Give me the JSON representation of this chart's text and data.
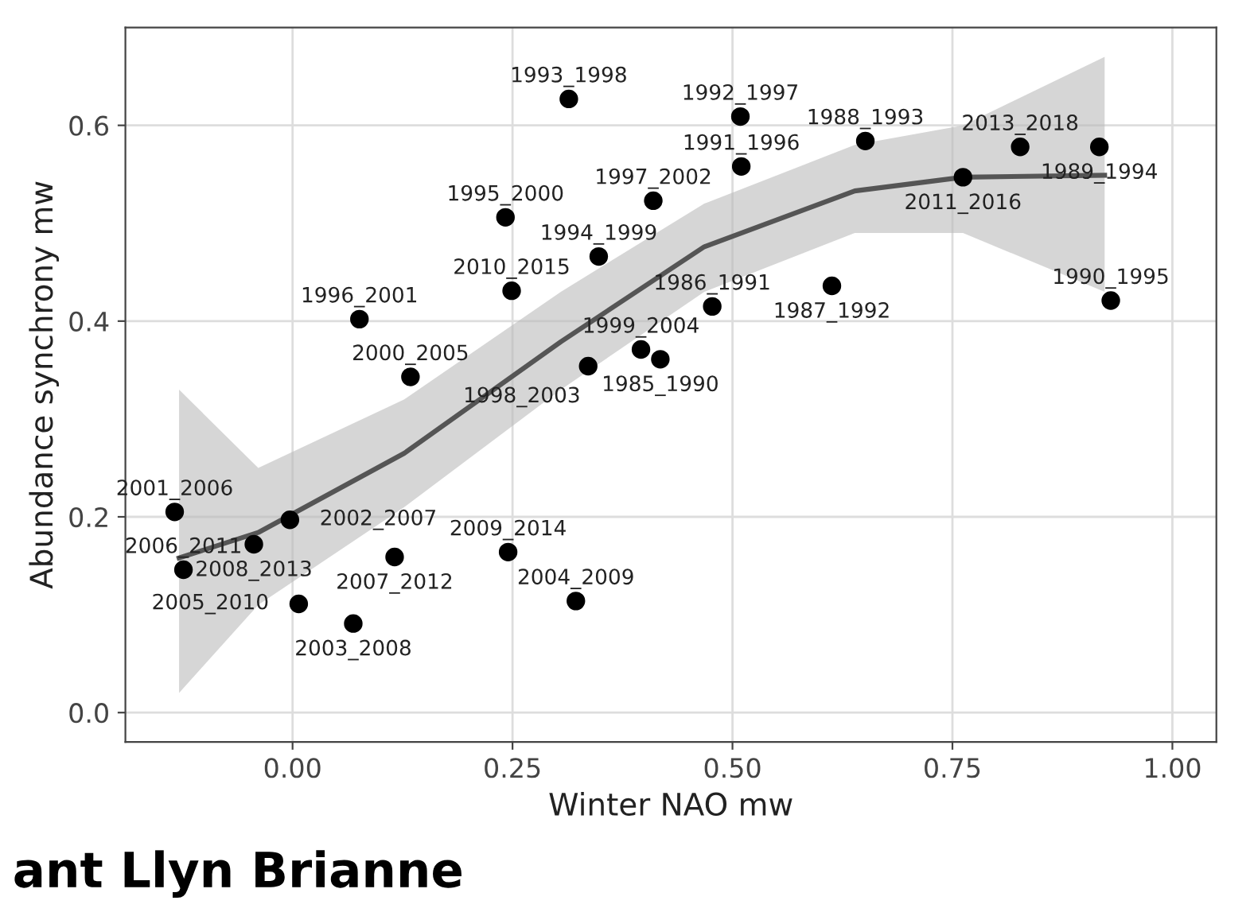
{
  "chart_data": {
    "type": "scatter",
    "xlabel": "Winter NAO mw",
    "ylabel": "Abundance synchrony mw",
    "xlim": [
      -0.19,
      1.05
    ],
    "ylim": [
      -0.03,
      0.7
    ],
    "xticks": [
      {
        "value": 0,
        "label": "0.00"
      },
      0.25,
      {
        "value": 0.5,
        "label": "0.50"
      },
      0.75,
      {
        "value": 1,
        "label": "1.00"
      }
    ],
    "yticks": [
      {
        "value": 0,
        "label": "0.0"
      },
      0.2,
      0.4,
      0.6
    ],
    "grid": true,
    "series": [
      {
        "marker": "circle",
        "color": "#000000",
        "x": [
          -0.134,
          -0.044,
          -0.124,
          -0.003,
          0.007,
          0.069,
          0.116,
          0.245,
          0.322,
          0.076,
          0.134,
          0.249,
          0.314,
          0.509,
          0.242,
          0.41,
          0.51,
          0.348,
          0.396,
          0.418,
          0.336,
          0.477,
          0.613,
          0.651,
          0.762,
          0.827,
          0.917,
          0.93
        ],
        "values": [
          0.205,
          0.172,
          0.146,
          0.197,
          0.111,
          0.091,
          0.159,
          0.164,
          0.114,
          0.402,
          0.343,
          0.431,
          0.627,
          0.609,
          0.506,
          0.523,
          0.558,
          0.466,
          0.371,
          0.361,
          0.354,
          0.415,
          0.436,
          0.584,
          0.547,
          0.578,
          0.578,
          0.421
        ]
      },
      {
        "type": "line",
        "color": "#555555",
        "x": [
          -0.129,
          -0.039,
          0.127,
          0.305,
          0.468,
          0.639,
          0.762,
          0.923
        ],
        "values": [
          0.158,
          0.184,
          0.265,
          0.379,
          0.476,
          0.533,
          0.547,
          0.549
        ],
        "lower": [
          0.02,
          0.11,
          0.21,
          0.33,
          0.43,
          0.49,
          0.49,
          0.43
        ],
        "upper": [
          0.33,
          0.25,
          0.32,
          0.43,
          0.52,
          0.58,
          0.6,
          0.67
        ]
      }
    ],
    "annotations": [
      {
        "text": "2001_2006",
        "x": -0.134,
        "y": 0.205
      },
      {
        "text": "2008_2013",
        "x": -0.044,
        "y": 0.172
      },
      {
        "text": "2006_2011",
        "x": -0.124,
        "y": 0.146
      },
      {
        "text": "2002_2007",
        "x": -0.003,
        "y": 0.197
      },
      {
        "text": "2005_2010",
        "x": 0.007,
        "y": 0.111
      },
      {
        "text": "2003_2008",
        "x": 0.069,
        "y": 0.091
      },
      {
        "text": "2007_2012",
        "x": 0.116,
        "y": 0.159
      },
      {
        "text": "2009_2014",
        "x": 0.245,
        "y": 0.164
      },
      {
        "text": "2004_2009",
        "x": 0.322,
        "y": 0.114
      },
      {
        "text": "1996_2001",
        "x": 0.076,
        "y": 0.402
      },
      {
        "text": "2000_2005",
        "x": 0.134,
        "y": 0.343
      },
      {
        "text": "2010_2015",
        "x": 0.249,
        "y": 0.431
      },
      {
        "text": "1993_1998",
        "x": 0.314,
        "y": 0.627
      },
      {
        "text": "1992_1997",
        "x": 0.509,
        "y": 0.609
      },
      {
        "text": "1995_2000",
        "x": 0.242,
        "y": 0.506
      },
      {
        "text": "1997_2002",
        "x": 0.41,
        "y": 0.523
      },
      {
        "text": "1991_1996",
        "x": 0.51,
        "y": 0.558
      },
      {
        "text": "1994_1999",
        "x": 0.348,
        "y": 0.466
      },
      {
        "text": "1999_2004",
        "x": 0.396,
        "y": 0.371
      },
      {
        "text": "1985_1990",
        "x": 0.418,
        "y": 0.361
      },
      {
        "text": "1998_2003",
        "x": 0.336,
        "y": 0.354
      },
      {
        "text": "1986_1991",
        "x": 0.477,
        "y": 0.415
      },
      {
        "text": "1987_1992",
        "x": 0.613,
        "y": 0.436
      },
      {
        "text": "1988_1993",
        "x": 0.651,
        "y": 0.584
      },
      {
        "text": "2011_2016",
        "x": 0.762,
        "y": 0.547
      },
      {
        "text": "2013_2018",
        "x": 0.827,
        "y": 0.578
      },
      {
        "text": "1989_1994",
        "x": 0.917,
        "y": 0.578
      },
      {
        "text": "1990_1995",
        "x": 0.93,
        "y": 0.421
      },
      "ant Llyn Brianne"
    ]
  }
}
